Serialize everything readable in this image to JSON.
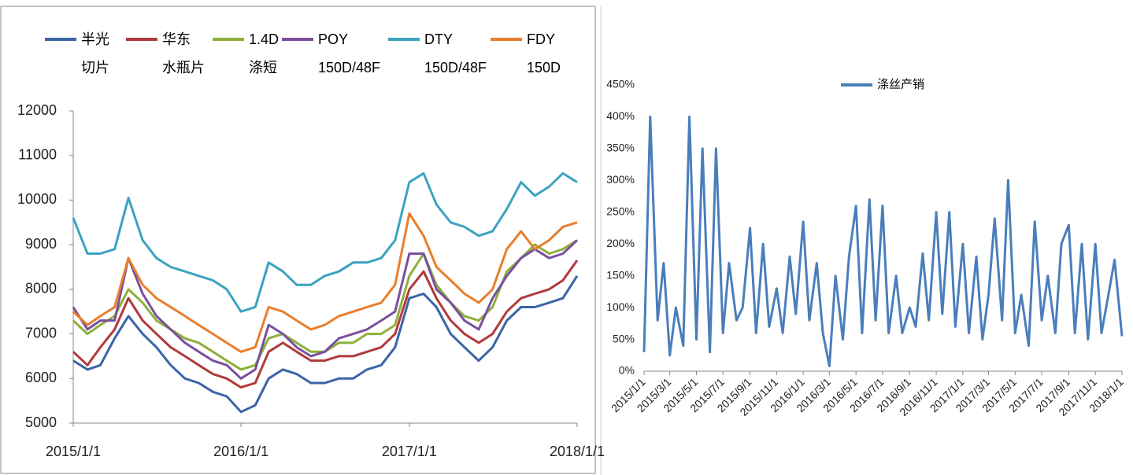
{
  "chart_data": [
    {
      "type": "line",
      "x": [
        "2015/1/1",
        "2015/2/1",
        "2015/3/1",
        "2015/4/1",
        "2015/5/1",
        "2015/6/1",
        "2015/7/1",
        "2015/8/1",
        "2015/9/1",
        "2015/10/1",
        "2015/11/1",
        "2015/12/1",
        "2016/1/1",
        "2016/2/1",
        "2016/3/1",
        "2016/4/1",
        "2016/5/1",
        "2016/6/1",
        "2016/7/1",
        "2016/8/1",
        "2016/9/1",
        "2016/10/1",
        "2016/11/1",
        "2016/12/1",
        "2017/1/1",
        "2017/2/1",
        "2017/3/1",
        "2017/4/1",
        "2017/5/1",
        "2017/6/1",
        "2017/7/1",
        "2017/8/1",
        "2017/9/1",
        "2017/10/1",
        "2017/11/1",
        "2017/12/1",
        "2018/1/1"
      ],
      "xlim": [
        "2015/1/1",
        "2018/1/1"
      ],
      "xticks": [
        "2015/1/1",
        "2016/1/1",
        "2017/1/1",
        "2018/1/1"
      ],
      "ylim": [
        5000,
        12000
      ],
      "yticks": [
        5000,
        6000,
        7000,
        8000,
        9000,
        10000,
        11000,
        12000
      ],
      "grid": false,
      "legend": "top",
      "series": [
        {
          "name": "半光 切片",
          "color": "#3a64a8",
          "values": [
            6400,
            6200,
            6300,
            6900,
            7400,
            7000,
            6700,
            6300,
            6000,
            5900,
            5700,
            5600,
            5250,
            5400,
            6000,
            6200,
            6100,
            5900,
            5900,
            6000,
            6000,
            6200,
            6300,
            6700,
            7800,
            7900,
            7600,
            7000,
            6700,
            6400,
            6700,
            7300,
            7600,
            7600,
            7700,
            7800,
            8300
          ]
        },
        {
          "name": "华东 水瓶片",
          "color": "#b03a3a",
          "values": [
            6600,
            6300,
            6700,
            7100,
            7800,
            7300,
            7000,
            6700,
            6500,
            6300,
            6100,
            6000,
            5800,
            5900,
            6600,
            6800,
            6600,
            6400,
            6400,
            6500,
            6500,
            6600,
            6700,
            7000,
            8000,
            8400,
            7800,
            7300,
            7000,
            6800,
            7000,
            7500,
            7800,
            7900,
            8000,
            8200,
            8650
          ]
        },
        {
          "name": "1.4D 涤短",
          "color": "#8db03a",
          "values": [
            7300,
            7000,
            7200,
            7400,
            8000,
            7700,
            7300,
            7100,
            6900,
            6800,
            6600,
            6400,
            6200,
            6300,
            6900,
            7000,
            6800,
            6600,
            6600,
            6800,
            6800,
            7000,
            7000,
            7200,
            8300,
            8800,
            8100,
            7700,
            7400,
            7300,
            7600,
            8400,
            8700,
            9000,
            8800,
            8900,
            9100
          ]
        },
        {
          "name": "POY 150D/48F",
          "color": "#7a4f9f",
          "values": [
            7600,
            7100,
            7300,
            7300,
            8700,
            7900,
            7400,
            7100,
            6800,
            6600,
            6400,
            6300,
            6000,
            6200,
            7200,
            7000,
            6700,
            6500,
            6600,
            6900,
            7000,
            7100,
            7300,
            7500,
            8800,
            8800,
            8000,
            7700,
            7300,
            7100,
            7800,
            8300,
            8700,
            8900,
            8700,
            8800,
            9100
          ]
        },
        {
          "name": "DTY 150D/48F",
          "color": "#3ba3c0",
          "values": [
            9600,
            8800,
            8800,
            8900,
            10050,
            9100,
            8700,
            8500,
            8400,
            8300,
            8200,
            8000,
            7500,
            7600,
            8600,
            8400,
            8100,
            8100,
            8300,
            8400,
            8600,
            8600,
            8700,
            9100,
            10400,
            10600,
            9900,
            9500,
            9400,
            9200,
            9300,
            9800,
            10400,
            10100,
            10300,
            10600,
            10400
          ]
        },
        {
          "name": "FDY 150D",
          "color": "#e97e2c",
          "values": [
            7500,
            7200,
            7400,
            7600,
            8700,
            8100,
            7800,
            7600,
            7400,
            7200,
            7000,
            6800,
            6600,
            6700,
            7600,
            7500,
            7300,
            7100,
            7200,
            7400,
            7500,
            7600,
            7700,
            8100,
            9700,
            9200,
            8500,
            8200,
            7900,
            7700,
            8000,
            8900,
            9300,
            8900,
            9100,
            9400,
            9500
          ]
        }
      ]
    },
    {
      "type": "line",
      "x": [
        "2015/1/1",
        "2015/1/15",
        "2015/2/1",
        "2015/2/15",
        "2015/3/1",
        "2015/3/15",
        "2015/4/1",
        "2015/4/15",
        "2015/5/1",
        "2015/5/15",
        "2015/6/1",
        "2015/6/15",
        "2015/7/1",
        "2015/7/15",
        "2015/8/1",
        "2015/8/15",
        "2015/9/1",
        "2015/9/15",
        "2015/10/1",
        "2015/10/15",
        "2015/11/1",
        "2015/11/15",
        "2015/12/1",
        "2015/12/15",
        "2016/1/1",
        "2016/1/15",
        "2016/2/1",
        "2016/2/15",
        "2016/3/1",
        "2016/3/15",
        "2016/4/1",
        "2016/4/15",
        "2016/5/1",
        "2016/5/15",
        "2016/6/1",
        "2016/6/15",
        "2016/7/1",
        "2016/7/15",
        "2016/8/1",
        "2016/8/15",
        "2016/9/1",
        "2016/9/15",
        "2016/10/1",
        "2016/10/15",
        "2016/11/1",
        "2016/11/15",
        "2016/12/1",
        "2016/12/15",
        "2017/1/1",
        "2017/1/15",
        "2017/2/1",
        "2017/2/15",
        "2017/3/1",
        "2017/3/15",
        "2017/4/1",
        "2017/4/15",
        "2017/5/1",
        "2017/5/15",
        "2017/6/1",
        "2017/6/15",
        "2017/7/1",
        "2017/7/15",
        "2017/8/1",
        "2017/8/15",
        "2017/9/1",
        "2017/9/15",
        "2017/10/1",
        "2017/10/15",
        "2017/11/1",
        "2017/11/15",
        "2017/12/1",
        "2017/12/15",
        "2018/1/1"
      ],
      "xlim": [
        "2015/1/1",
        "2018/1/1"
      ],
      "xticks": [
        "2015/1/1",
        "2015/3/1",
        "2015/5/1",
        "2015/7/1",
        "2015/9/1",
        "2015/11/1",
        "2016/1/1",
        "2016/3/1",
        "2016/5/1",
        "2016/7/1",
        "2016/9/1",
        "2016/11/1",
        "2017/1/1",
        "2017/3/1",
        "2017/5/1",
        "2017/7/1",
        "2017/9/1",
        "2017/11/1",
        "2018/1/1"
      ],
      "ylim": [
        0,
        450
      ],
      "yticks": [
        {
          "value": 0,
          "label": "0%"
        },
        {
          "value": 50,
          "label": "50%"
        },
        {
          "value": 100,
          "label": "100%"
        },
        {
          "value": 150,
          "label": "150%"
        },
        {
          "value": 200,
          "label": "200%"
        },
        {
          "value": 250,
          "label": "250%"
        },
        {
          "value": 300,
          "label": "300%"
        },
        {
          "value": 350,
          "label": "350%"
        },
        {
          "value": 400,
          "label": "400%"
        },
        {
          "value": 450,
          "label": "450%"
        }
      ],
      "grid": false,
      "legend": "top",
      "series": [
        {
          "name": "涤丝产销",
          "color": "#4a7ebb",
          "values": [
            30,
            400,
            80,
            170,
            25,
            100,
            40,
            400,
            50,
            350,
            30,
            350,
            60,
            170,
            80,
            100,
            225,
            60,
            200,
            70,
            130,
            60,
            180,
            90,
            235,
            80,
            170,
            60,
            8,
            150,
            50,
            180,
            260,
            60,
            270,
            80,
            260,
            60,
            150,
            60,
            100,
            70,
            185,
            80,
            250,
            90,
            250,
            70,
            200,
            60,
            180,
            50,
            120,
            240,
            80,
            300,
            60,
            120,
            40,
            235,
            80,
            150,
            60,
            200,
            230,
            60,
            200,
            50,
            200,
            60,
            120,
            175,
            55
          ]
        }
      ]
    }
  ]
}
